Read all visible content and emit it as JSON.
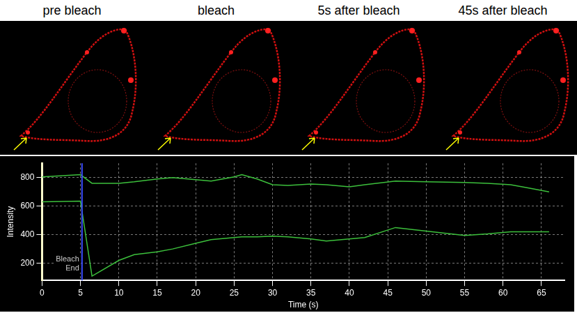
{
  "image_labels": [
    "pre bleach",
    "bleach",
    "5s after bleach",
    "45s after bleach"
  ],
  "chart_data": {
    "type": "line",
    "xlabel": "Time (s)",
    "ylabel": "Intensity",
    "x": [
      0,
      5,
      6.5,
      10,
      12,
      15,
      17,
      20,
      22,
      25,
      26,
      28,
      30,
      32,
      35,
      37,
      40,
      42,
      46,
      50,
      55,
      58,
      61,
      63,
      66
    ],
    "series": [
      {
        "color": "#3cc03c",
        "values": [
          805,
          820,
          760,
          760,
          770,
          790,
          800,
          785,
          775,
          805,
          820,
          790,
          750,
          745,
          755,
          750,
          735,
          750,
          775,
          770,
          765,
          760,
          750,
          730,
          700
        ]
      },
      {
        "color": "#3cc03c",
        "values": [
          630,
          635,
          110,
          220,
          260,
          280,
          300,
          340,
          365,
          380,
          385,
          385,
          390,
          385,
          370,
          355,
          370,
          380,
          450,
          425,
          395,
          405,
          420,
          420,
          420
        ]
      }
    ],
    "xlim": [
      0,
      68
    ],
    "xticks": [
      0,
      5,
      10,
      15,
      20,
      25,
      30,
      35,
      40,
      45,
      50,
      55,
      60,
      65
    ],
    "ylim": [
      80,
      900
    ],
    "yticks": [
      200,
      400,
      600,
      800
    ],
    "grid": true,
    "annotations": [
      {
        "text": "Bleach",
        "x": 5.2
      },
      {
        "text": "End",
        "x": 5.2
      }
    ]
  }
}
